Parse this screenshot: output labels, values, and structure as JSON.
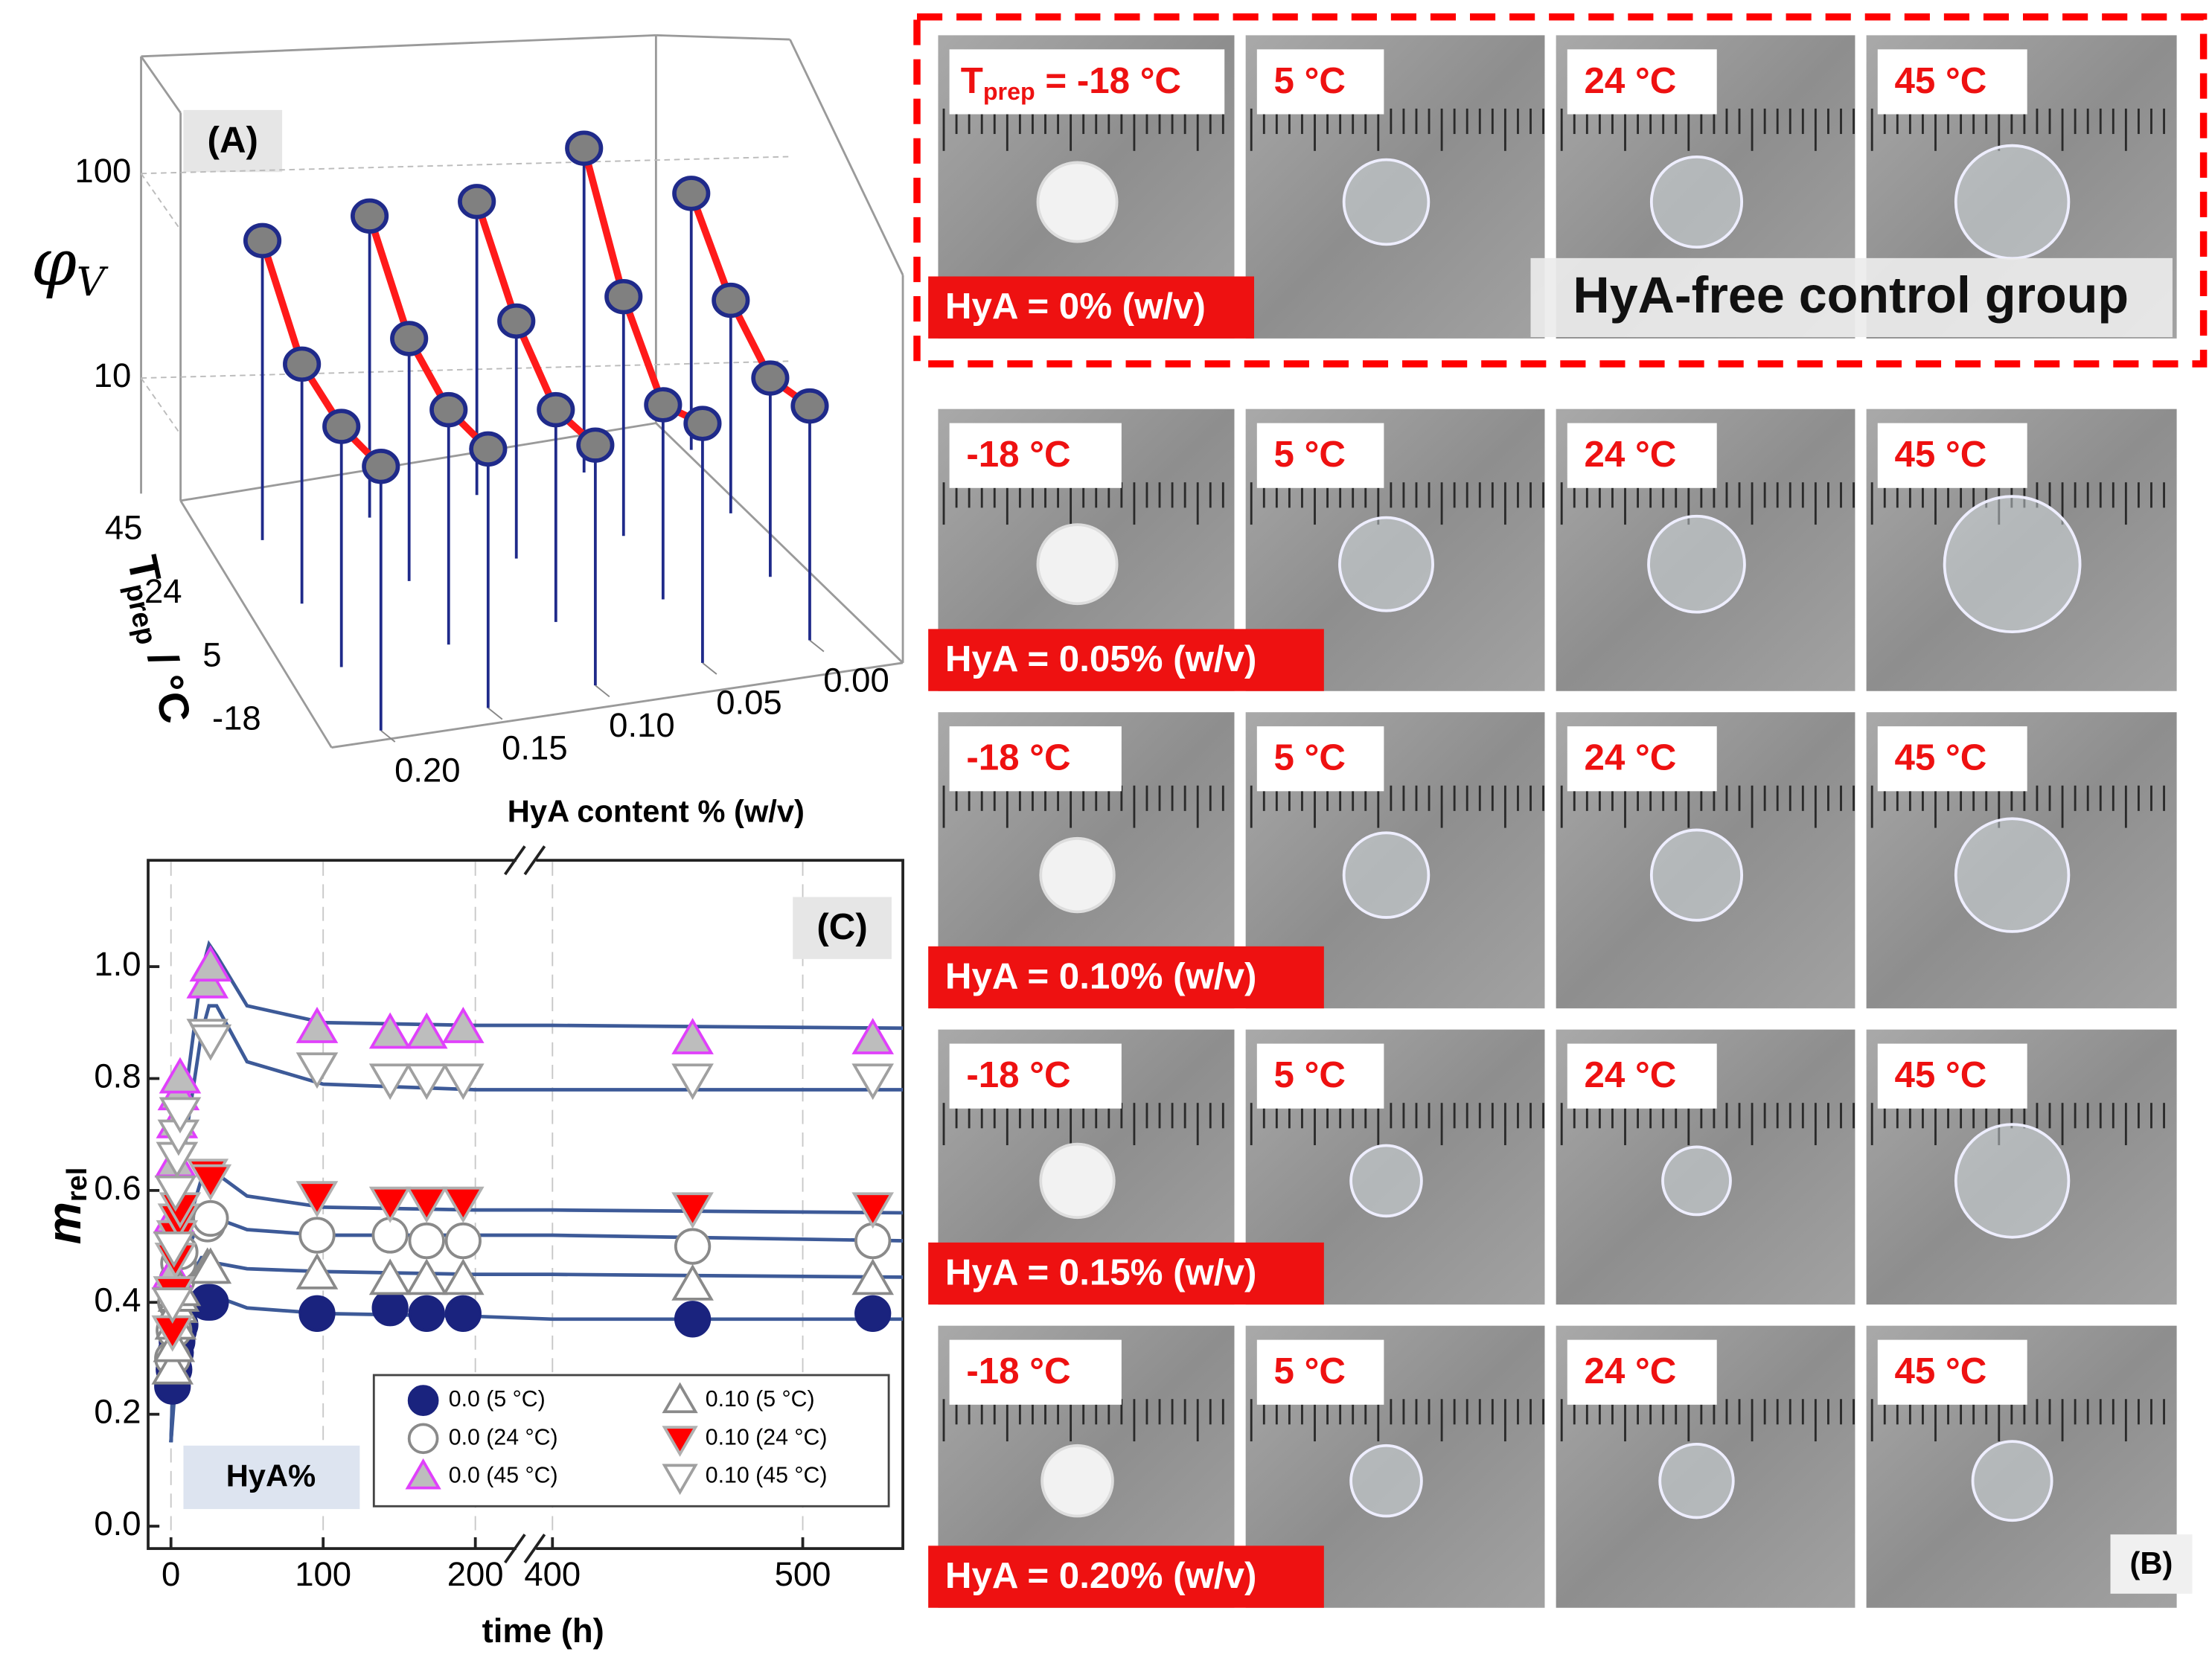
{
  "chart_data": [
    {
      "type": "stem3d",
      "label": "(A)",
      "z_label": "φ",
      "z_label_sub": "V",
      "y_label": "T",
      "y_label_sub": "prep",
      "y_label_unit": " / °C",
      "x_label": "HyA content % (w/v)",
      "hya_content": [
        0.0,
        0.05,
        0.1,
        0.15,
        0.2
      ],
      "xlim": [
        0,
        0.2
      ],
      "xticks": [
        {
          "value": 0.2,
          "label": "0.20"
        },
        {
          "value": 0.15,
          "label": "0.15"
        },
        {
          "value": 0.1,
          "label": "0.10"
        },
        {
          "value": 0.05,
          "label": "0.05"
        },
        {
          "value": 0.0,
          "label": "0.00"
        }
      ],
      "tprep": [
        -18,
        5,
        24,
        45
      ],
      "values": [
        [
          7.3,
          10,
          24,
          80
        ],
        [
          6,
          7.4,
          25,
          133
        ],
        [
          4.7,
          7,
          19,
          73
        ],
        [
          4.5,
          7,
          15.6,
          62
        ],
        [
          3.7,
          5.8,
          11.7,
          47
        ]
      ],
      "zlim": [
        2,
        200
      ],
      "zticks": [
        10,
        100
      ],
      "zscale": "log",
      "stem_color": "#1f2a8a",
      "marker_color": "#808080",
      "line_color": "#ff1a1a"
    },
    {
      "type": "scatter",
      "label": "(C)",
      "group_label": "HyA%",
      "xlabel": "time (h)",
      "ylabel": "m",
      "ylabel_sub": "rel",
      "xlim": [
        -15,
        540
      ],
      "xbreak": [
        226,
        385
      ],
      "xticks": [
        0,
        100,
        200,
        400,
        500
      ],
      "ylim": [
        -0.04,
        1.19
      ],
      "yticks": [
        {
          "value": 0,
          "label": "0.0"
        },
        {
          "value": 0.2,
          "label": "0.2"
        },
        {
          "value": 0.4,
          "label": "0.4"
        },
        {
          "value": 0.6,
          "label": "0.6"
        },
        {
          "value": 0.8,
          "label": "0.8"
        },
        {
          "value": 1.0,
          "label": "1.0"
        }
      ],
      "x": [
        1,
        2,
        3,
        4,
        5,
        6,
        24,
        26,
        96,
        144,
        168,
        192,
        456,
        528
      ],
      "series": [
        {
          "name": "0.0 (5 °C)",
          "marker": "circle",
          "color": "#1a237e",
          "edge": "#1a237e",
          "values": [
            0.25,
            0.28,
            0.31,
            0.33,
            0.35,
            0.36,
            0.4,
            0.4,
            0.38,
            0.39,
            0.38,
            0.38,
            0.37,
            0.38
          ]
        },
        {
          "name": "0.0 (24 °C)",
          "marker": "circle",
          "color": "#ffffff",
          "edge": "#8a8a8a",
          "values": [
            0.3,
            0.35,
            0.4,
            0.44,
            0.47,
            0.49,
            0.54,
            0.55,
            0.52,
            0.52,
            0.51,
            0.51,
            0.5,
            0.51
          ]
        },
        {
          "name": "0.0 (45 °C)",
          "marker": "triangle-up",
          "color": "#bdbdbd",
          "edge": "#e040fb",
          "values": [
            0.45,
            0.55,
            0.65,
            0.72,
            0.77,
            0.8,
            0.97,
            1.0,
            0.89,
            0.88,
            0.88,
            0.89,
            0.87,
            0.87
          ]
        },
        {
          "name": "0.10 (5 °C)",
          "marker": "triangle-up",
          "color": "#ffffff",
          "edge": "#8a8a8a",
          "values": [
            0.28,
            0.32,
            0.36,
            0.39,
            0.41,
            0.42,
            0.46,
            0.46,
            0.45,
            0.44,
            0.44,
            0.44,
            0.43,
            0.44
          ]
        },
        {
          "name": "0.10 (24 °C)",
          "marker": "triangle-down",
          "color": "#ff0000",
          "edge": "#b0b0b0",
          "values": [
            0.35,
            0.42,
            0.48,
            0.52,
            0.55,
            0.57,
            0.63,
            0.62,
            0.59,
            0.58,
            0.58,
            0.58,
            0.57,
            0.57
          ]
        },
        {
          "name": "0.10 (45 °C)",
          "marker": "triangle-down",
          "color": "#ffffff",
          "edge": "#a0a0a0",
          "values": [
            0.4,
            0.5,
            0.6,
            0.66,
            0.7,
            0.74,
            0.88,
            0.87,
            0.82,
            0.8,
            0.8,
            0.8,
            0.8,
            0.8
          ]
        }
      ],
      "fits": {
        "color": "#3d5a98",
        "x": [
          0,
          5,
          10,
          20,
          25,
          30,
          50,
          100,
          200,
          400,
          540
        ],
        "series": [
          [
            0.15,
            0.33,
            0.37,
            0.41,
            0.42,
            0.41,
            0.39,
            0.38,
            0.375,
            0.37,
            0.37
          ],
          [
            0.15,
            0.38,
            0.43,
            0.48,
            0.48,
            0.47,
            0.46,
            0.455,
            0.45,
            0.45,
            0.445
          ],
          [
            0.15,
            0.42,
            0.49,
            0.55,
            0.56,
            0.55,
            0.53,
            0.52,
            0.52,
            0.52,
            0.51
          ],
          [
            0.15,
            0.45,
            0.53,
            0.62,
            0.64,
            0.63,
            0.59,
            0.57,
            0.565,
            0.565,
            0.56
          ],
          [
            0.15,
            0.55,
            0.7,
            0.88,
            0.93,
            0.93,
            0.83,
            0.79,
            0.78,
            0.78,
            0.78
          ],
          [
            0.15,
            0.6,
            0.78,
            0.99,
            1.04,
            1.02,
            0.93,
            0.9,
            0.895,
            0.895,
            0.89
          ]
        ]
      }
    }
  ],
  "photo_grid": {
    "label": "(B)",
    "control_label": "HyA-free control group",
    "first_temp": {
      "main": "T",
      "sub": "prep",
      "rest": " = -18 °C"
    },
    "rows": [
      {
        "hya": "HyA = 0% (w/v)",
        "temps": [
          "5 °C",
          "24 °C",
          "45 °C"
        ]
      },
      {
        "hya": "HyA = 0.05% (w/v)",
        "temps": [
          "-18 °C",
          "5 °C",
          "24 °C",
          "45 °C"
        ]
      },
      {
        "hya": "HyA = 0.10% (w/v)",
        "temps": [
          "-18 °C",
          "5 °C",
          "24 °C",
          "45 °C"
        ]
      },
      {
        "hya": "HyA = 0.15% (w/v)",
        "temps": [
          "-18 °C",
          "5 °C",
          "24 °C",
          "45 °C"
        ]
      },
      {
        "hya": "HyA = 0.20% (w/v)",
        "temps": [
          "-18 °C",
          "5 °C",
          "24 °C",
          "45 °C"
        ]
      }
    ]
  }
}
